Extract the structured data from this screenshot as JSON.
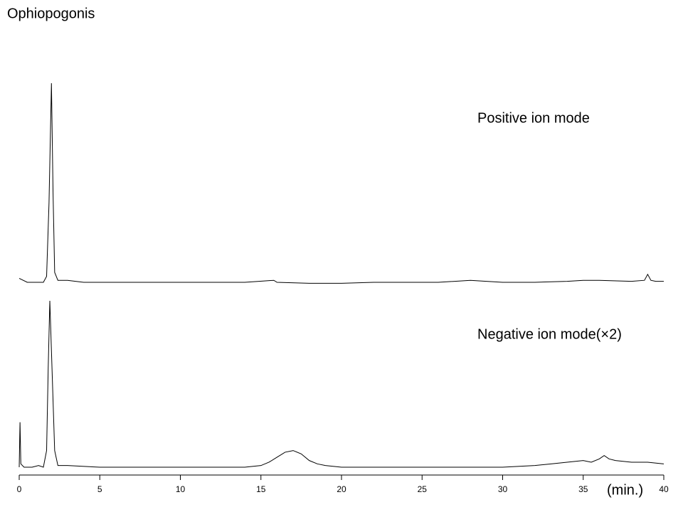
{
  "chart_data": [
    {
      "type": "line",
      "title": "Ophiopogonis",
      "annotation": "Positive ion mode",
      "color": "#000000",
      "x": [
        0,
        0.5,
        1,
        1.5,
        1.7,
        1.85,
        2.0,
        2.1,
        2.2,
        2.4,
        3,
        4,
        5,
        6,
        8,
        10,
        12,
        14,
        15.8,
        16,
        18,
        20,
        22,
        24,
        26,
        28,
        30,
        32,
        34,
        35,
        36,
        38,
        38.8,
        39,
        39.2,
        39.5,
        40
      ],
      "values": [
        2,
        0,
        0,
        0,
        3,
        40,
        100,
        45,
        5,
        1,
        1,
        0,
        0,
        0,
        0,
        0,
        0,
        0,
        1,
        0,
        -0.5,
        -0.5,
        0,
        0,
        0,
        1,
        0,
        0,
        0.5,
        1,
        1,
        0.5,
        1,
        4,
        1,
        0.5,
        0.5
      ],
      "xlim": [
        0,
        40
      ],
      "ylim": [
        0,
        100
      ]
    },
    {
      "type": "line",
      "annotation": "Negative ion mode(×2)",
      "color": "#000000",
      "x": [
        0,
        0.05,
        0.1,
        0.3,
        0.8,
        1.2,
        1.5,
        1.7,
        1.8,
        1.9,
        2.0,
        2.2,
        2.4,
        3,
        5,
        8,
        10,
        12,
        14,
        15,
        15.5,
        16,
        16.5,
        17,
        17.5,
        18,
        18.5,
        19,
        20,
        22,
        24,
        26,
        28,
        30,
        32,
        33,
        34,
        35,
        35.5,
        36,
        36.3,
        36.6,
        37,
        38,
        39,
        40
      ],
      "values": [
        0,
        27,
        2,
        0,
        0,
        1,
        0,
        10,
        60,
        100,
        70,
        10,
        1,
        1,
        0,
        0,
        0,
        0,
        0,
        1,
        3,
        6,
        9,
        10,
        8,
        4,
        2,
        1,
        0,
        0,
        0,
        0,
        0,
        0,
        1,
        2,
        3,
        4,
        3,
        5,
        7,
        5,
        4,
        3,
        3,
        2
      ],
      "xlim": [
        0,
        40
      ],
      "ylim": [
        0,
        100
      ],
      "xticks": [
        0,
        5,
        10,
        15,
        20,
        25,
        30,
        35,
        40
      ],
      "xlabel": "(min.)"
    }
  ]
}
